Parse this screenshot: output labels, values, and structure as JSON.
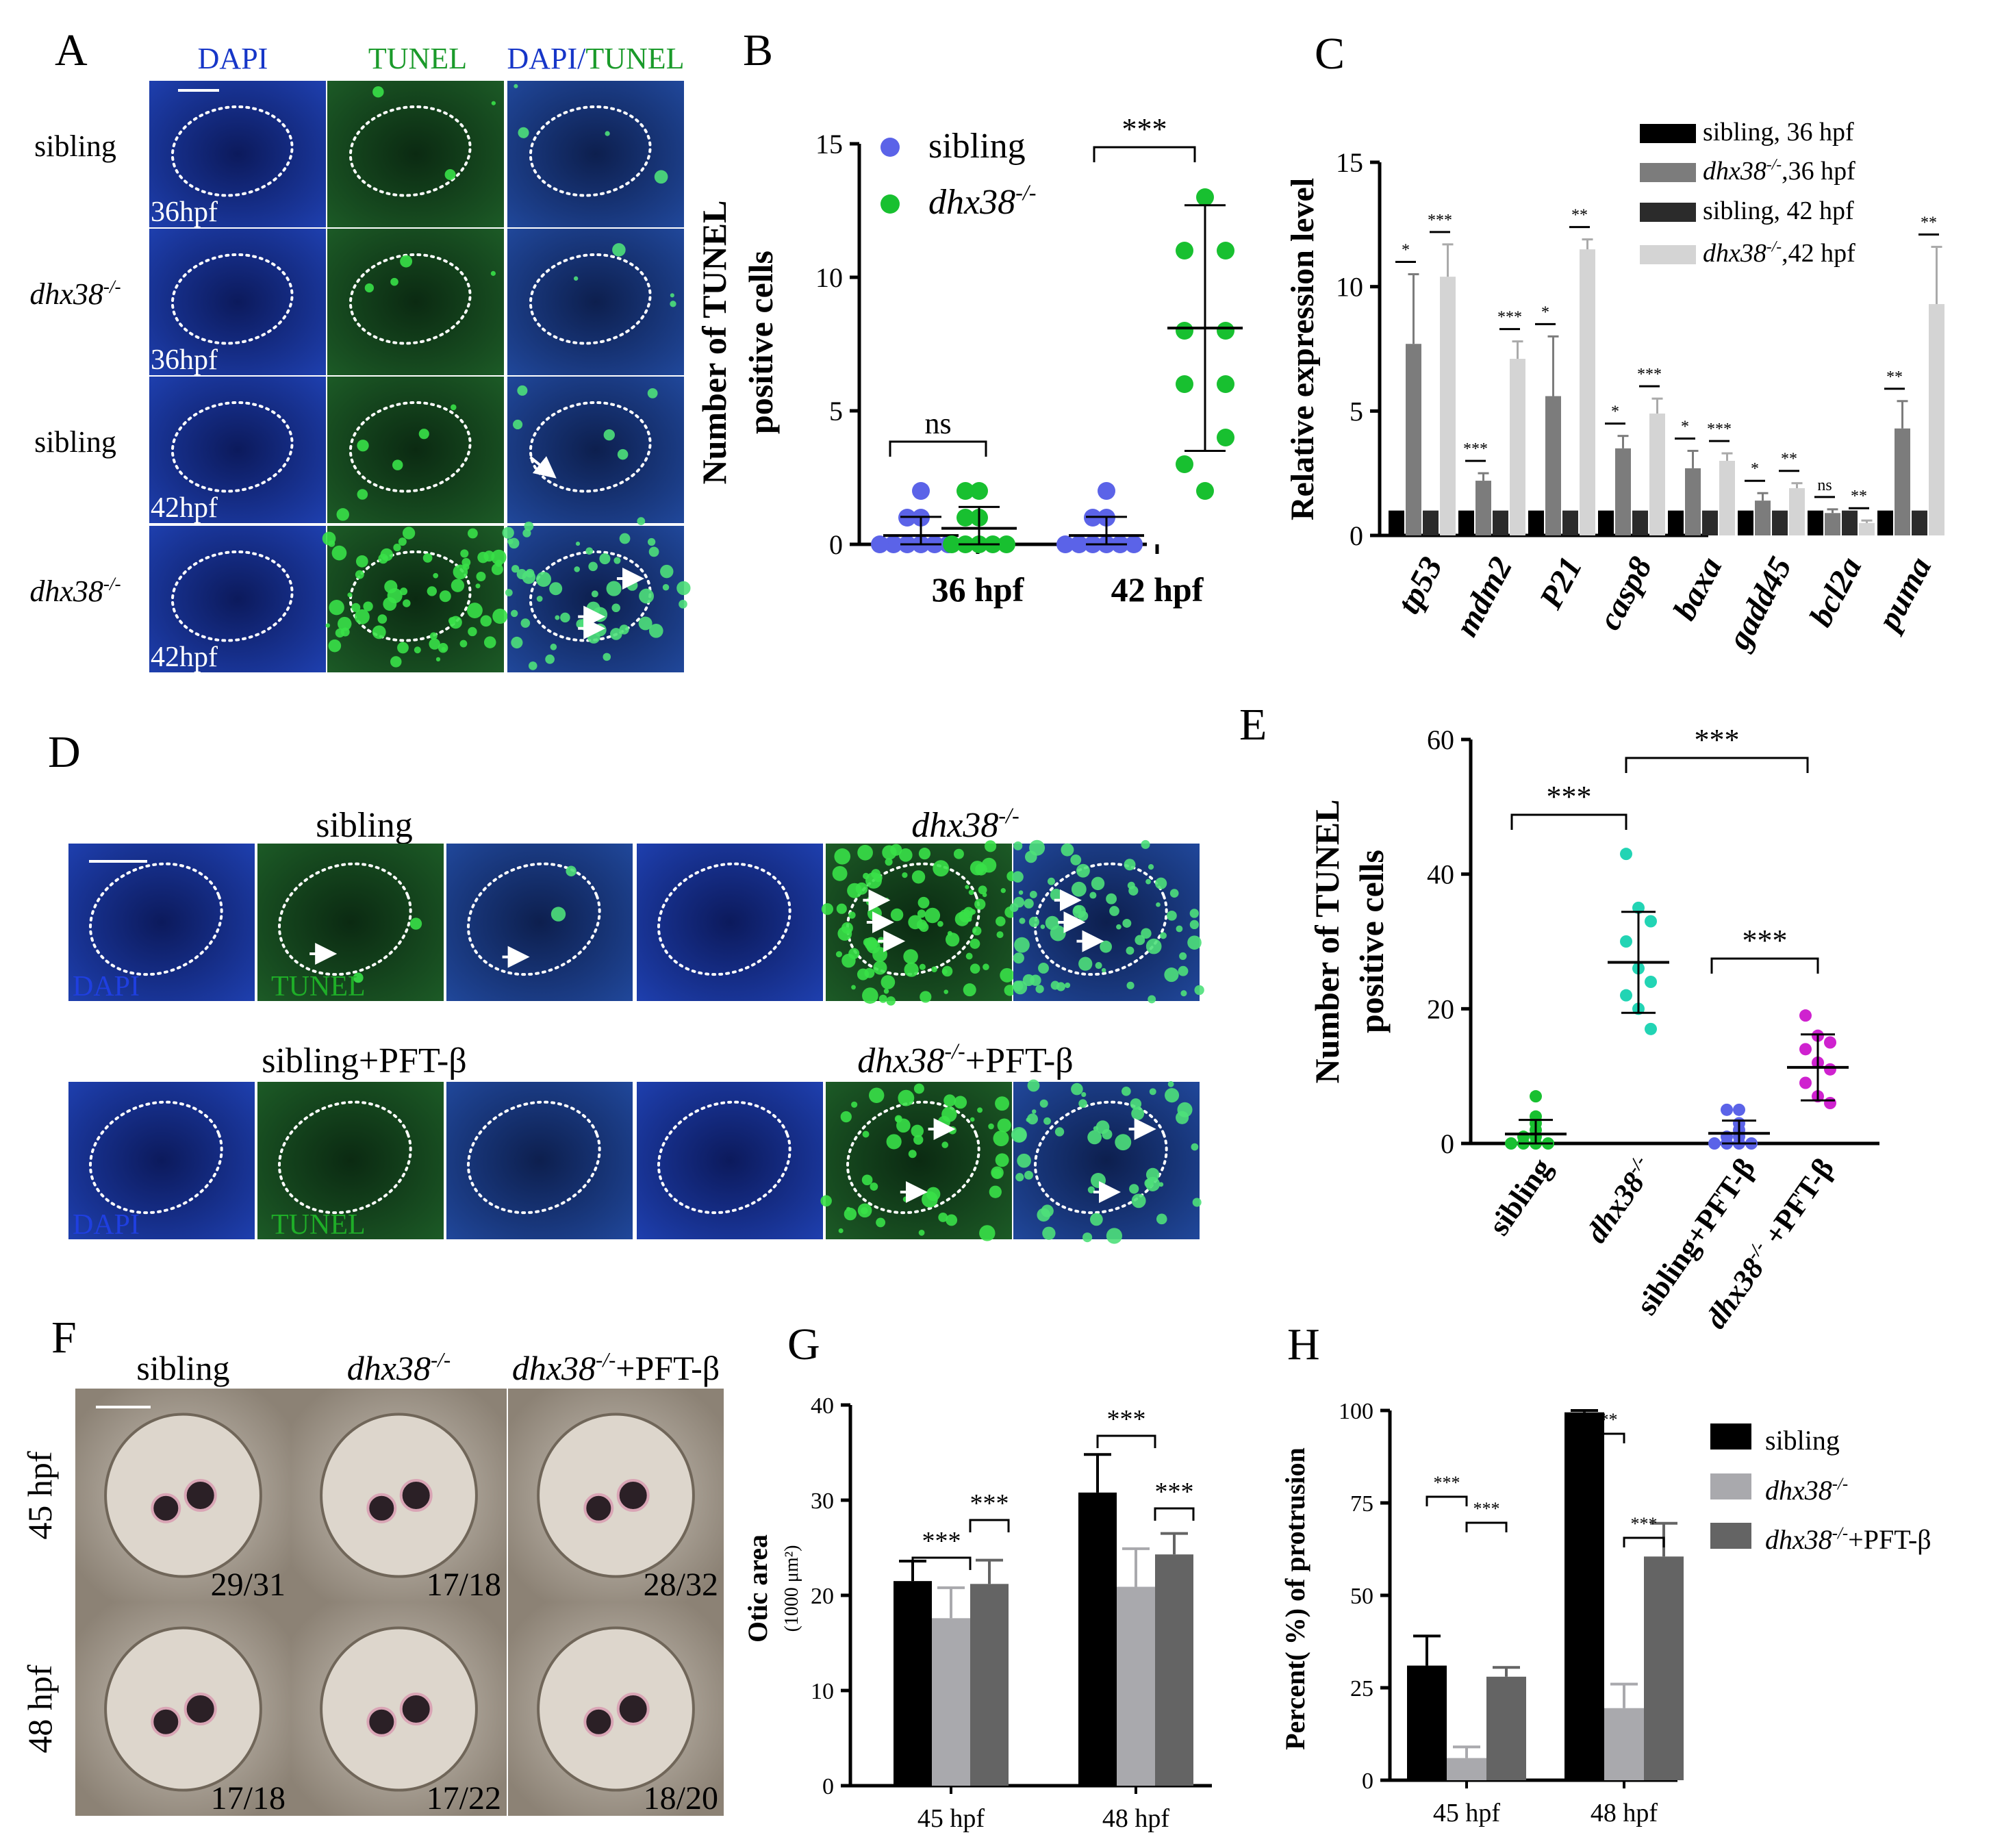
{
  "panel_letters": [
    "A",
    "B",
    "C",
    "D",
    "E",
    "F",
    "G",
    "H"
  ],
  "colors": {
    "dapi_blue": "#1636c8",
    "tunel_green": "#1a9a2a",
    "sibling_dot": "#5b63e8",
    "mutant_dot": "#18c030",
    "cyan_dot": "#22d4b4",
    "magenta_dot": "#cf22cf",
    "sib_bar": "#000000",
    "mut_bar": "#a9a9ad",
    "pft_bar": "#646464",
    "c_sib36": "#000000",
    "c_mut36": "#7c7c7c",
    "c_sib42": "#2b2b2b",
    "c_mut42": "#d4d4d4"
  },
  "panelA": {
    "channels": [
      "DAPI",
      "TUNEL",
      "DAPI/",
      "TUNEL"
    ],
    "rows": [
      {
        "label": "sibling",
        "sup": "",
        "time": "36hpf"
      },
      {
        "label": "dhx38",
        "sup": "-/-",
        "time": "36hpf"
      },
      {
        "label": "sibling",
        "sup": "",
        "time": "42hpf"
      },
      {
        "label": "dhx38",
        "sup": "-/-",
        "time": "42hpf"
      }
    ]
  },
  "panelD": {
    "groups": [
      {
        "label": "sibling",
        "sup": "",
        "suffix": ""
      },
      {
        "label": "dhx38",
        "sup": "-/-",
        "suffix": ""
      },
      {
        "label": "sibling+PFT-β",
        "sup": "",
        "suffix": ""
      },
      {
        "label": "dhx38",
        "sup": "-/-",
        "suffix": "+PFT-β"
      }
    ],
    "channel_labels": [
      "DAPI",
      "TUNEL"
    ]
  },
  "panelF": {
    "columns": [
      {
        "label": "sibling",
        "sup": "",
        "suffix": ""
      },
      {
        "label": "dhx38",
        "sup": "-/-",
        "suffix": ""
      },
      {
        "label": "dhx38",
        "sup": "-/-",
        "suffix": "+PFT-β"
      }
    ],
    "rows": [
      "45 hpf",
      "48 hpf"
    ],
    "counts": [
      [
        "29/31",
        "17/18",
        "28/32"
      ],
      [
        "17/18",
        "17/22",
        "18/20"
      ]
    ]
  },
  "chart_data": [
    {
      "id": "B",
      "type": "scatter",
      "ylabel_line1": "Number of TUNEL",
      "ylabel_line2": "positive cells",
      "ylim": [
        0,
        15
      ],
      "yticks": [
        "0",
        "5",
        "10",
        "15"
      ],
      "categories": [
        "36 hpf",
        "42 hpf"
      ],
      "legend": [
        {
          "name": "sibling",
          "sup": ""
        },
        {
          "name": "dhx38",
          "sup": "-/-"
        }
      ],
      "series": [
        {
          "name": "sibling",
          "group": "36 hpf",
          "points": [
            0,
            0,
            0,
            0,
            0,
            0,
            1,
            1,
            2
          ],
          "mean": 0.33,
          "sd": 0.7
        },
        {
          "name": "dhx38",
          "group": "36 hpf",
          "points": [
            0,
            0,
            0,
            0,
            0,
            1,
            1,
            2,
            2
          ],
          "mean": 0.6,
          "sd": 0.8
        },
        {
          "name": "sibling",
          "group": "42 hpf",
          "points": [
            0,
            0,
            0,
            0,
            0,
            0,
            1,
            1,
            2
          ],
          "mean": 0.33,
          "sd": 0.7
        },
        {
          "name": "dhx38",
          "group": "42 hpf",
          "points": [
            13,
            11,
            11,
            8,
            8,
            6,
            6,
            4,
            3,
            2
          ],
          "mean": 8.1,
          "sd": 4.6
        }
      ],
      "annotations": [
        "ns",
        "***"
      ]
    },
    {
      "id": "C",
      "type": "bar",
      "ylabel": "Relative expression level",
      "ylim": [
        0,
        15
      ],
      "yticks": [
        "0",
        "5",
        "10",
        "15"
      ],
      "categories": [
        "tp53",
        "mdm2",
        "P21",
        "casp8",
        "baxa",
        "gadd45",
        "bcl2a",
        "puma"
      ],
      "legend": [
        {
          "name": "sibling,  36 hpf",
          "italic": false
        },
        {
          "name": "dhx38",
          "sup": "-/-",
          "suffix": ",36 hpf",
          "italic": true
        },
        {
          "name": "sibling,  42 hpf",
          "italic": false
        },
        {
          "name": "dhx38",
          "sup": "-/-",
          "suffix": ",42 hpf",
          "italic": true
        }
      ],
      "series": [
        {
          "name": "sibling, 36 hpf",
          "values": [
            1,
            1,
            1,
            1,
            1,
            1,
            1,
            1
          ]
        },
        {
          "name": "dhx38-/-, 36 hpf",
          "values": [
            7.7,
            2.2,
            5.6,
            3.5,
            2.7,
            1.4,
            0.9,
            4.3
          ],
          "err": [
            2.8,
            0.3,
            2.4,
            0.5,
            0.7,
            0.3,
            0.15,
            1.1
          ]
        },
        {
          "name": "sibling, 42 hpf",
          "values": [
            1,
            1,
            1,
            1,
            1,
            1,
            1,
            1
          ]
        },
        {
          "name": "dhx38-/-, 42 hpf",
          "values": [
            10.4,
            7.1,
            11.5,
            4.9,
            3.0,
            1.9,
            0.5,
            9.3
          ],
          "err": [
            1.3,
            0.7,
            0.4,
            0.6,
            0.3,
            0.2,
            0.1,
            2.3
          ]
        }
      ],
      "sig36": [
        "*",
        "***",
        "*",
        "*",
        "*",
        "*",
        "ns",
        "**"
      ],
      "sig42": [
        "***",
        "***",
        "**",
        "***",
        "***",
        "**",
        "**",
        "**"
      ]
    },
    {
      "id": "E",
      "type": "scatter",
      "ylabel_line1": "Number of TUNEL",
      "ylabel_line2": "positive cells",
      "ylim": [
        0,
        60
      ],
      "yticks": [
        "0",
        "20",
        "40",
        "60"
      ],
      "categories": [
        {
          "name": "sibling",
          "sup": "",
          "suffix": ""
        },
        {
          "name": "dhx38",
          "sup": "-/-",
          "suffix": ""
        },
        {
          "name": "sibling+PFT-β",
          "sup": "",
          "suffix": ""
        },
        {
          "name": "dhx38",
          "sup": "-/-",
          "suffix": " +PFT-β"
        }
      ],
      "series": [
        {
          "name": "sibling",
          "points": [
            0,
            0,
            0,
            0,
            1,
            1,
            2,
            3,
            4,
            7
          ],
          "mean": 1.4,
          "sd": 2.1
        },
        {
          "name": "dhx38-/-",
          "points": [
            43,
            35,
            33,
            30,
            26,
            24,
            22,
            20,
            17
          ],
          "mean": 26.9,
          "sd": 7.5
        },
        {
          "name": "sibling+PFT-β",
          "points": [
            0,
            0,
            0,
            0,
            1,
            1,
            2,
            3,
            5,
            5
          ],
          "mean": 1.5,
          "sd": 1.9
        },
        {
          "name": "dhx38-/- +PFT-β",
          "points": [
            19,
            16,
            15,
            14,
            12,
            11,
            9,
            7,
            6
          ],
          "mean": 11.3,
          "sd": 4.9
        }
      ],
      "annotations": [
        "***",
        "***",
        "***"
      ]
    },
    {
      "id": "G",
      "type": "bar",
      "ylabel": "Otic area",
      "ylabel_units": "(1000 μm²)",
      "ylim": [
        0,
        40
      ],
      "yticks": [
        "0",
        "10",
        "20",
        "30",
        "40"
      ],
      "categories": [
        "45 hpf",
        "48 hpf"
      ],
      "series": [
        {
          "name": "sibling",
          "values": [
            21.5,
            30.8
          ],
          "err": [
            2.1,
            4.0
          ]
        },
        {
          "name": "dhx38-/-",
          "values": [
            17.6,
            20.9
          ],
          "err": [
            3.2,
            4.0
          ]
        },
        {
          "name": "dhx38-/-+PFT-β",
          "values": [
            21.2,
            24.3
          ],
          "err": [
            2.5,
            2.2
          ]
        }
      ],
      "annotations": [
        "***",
        "***",
        "***",
        "***"
      ]
    },
    {
      "id": "H",
      "type": "bar",
      "ylabel": "Percent( %) of  protrusion",
      "ylim": [
        0,
        100
      ],
      "yticks": [
        "0",
        "25",
        "50",
        "75",
        "100"
      ],
      "categories": [
        "45 hpf",
        "48 hpf"
      ],
      "legend": [
        {
          "name": "sibling",
          "sup": "",
          "suffix": ""
        },
        {
          "name": "dhx38",
          "sup": "-/-",
          "suffix": ""
        },
        {
          "name": "dhx38",
          "sup": "-/-",
          "suffix": "+PFT-β"
        }
      ],
      "series": [
        {
          "name": "sibling",
          "values": [
            31,
            99.5
          ],
          "err": [
            8,
            0.5
          ]
        },
        {
          "name": "dhx38-/-",
          "values": [
            6,
            19.5
          ],
          "err": [
            3,
            6.5
          ]
        },
        {
          "name": "dhx38-/-+PFT-β",
          "values": [
            28,
            60.5
          ],
          "err": [
            2.5,
            9
          ]
        }
      ],
      "annotations": [
        "***",
        "***",
        "***",
        "***"
      ]
    }
  ]
}
